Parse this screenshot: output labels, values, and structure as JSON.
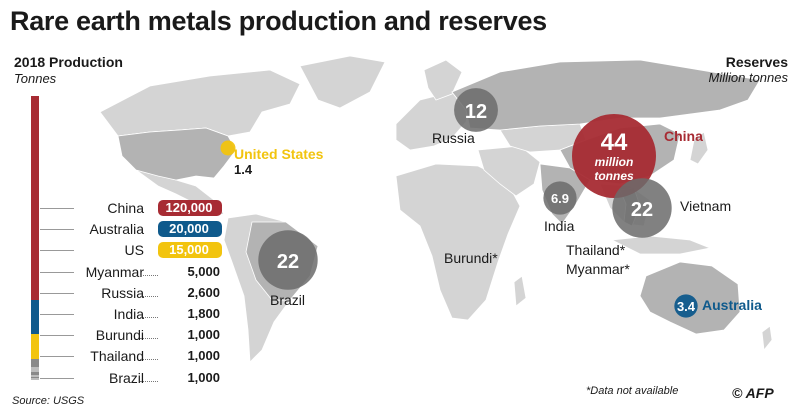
{
  "title": "Rare earth metals production and reserves",
  "production_heading": "2018 Production",
  "production_unit": "Tonnes",
  "reserves_heading": "Reserves",
  "reserves_unit": "Million tonnes",
  "source": "Source: USGS",
  "note": "*Data not available",
  "credit": "© AFP",
  "colors": {
    "china": "#a72b33",
    "australia": "#0f5a8c",
    "us": "#f2c40f",
    "myanmar": "#bdbdbd",
    "other": "#8a8a8a",
    "land": "#d6d6d6",
    "land_dark": "#b7b7b7",
    "bubble": "#6b6b6b"
  },
  "chart_data": [
    {
      "type": "bar",
      "title": "2018 Production",
      "ylabel": "Tonnes",
      "categories": [
        "China",
        "Australia",
        "US",
        "Myanmar",
        "Russia",
        "India",
        "Burundi",
        "Thailand",
        "Brazil"
      ],
      "values": [
        120000,
        20000,
        15000,
        5000,
        2600,
        1800,
        1000,
        1000,
        1000
      ],
      "labels": [
        "120,000",
        "20,000",
        "15,000",
        "5,000",
        "2,600",
        "1,800",
        "1,000",
        "1,000",
        "1,000"
      ]
    },
    {
      "type": "scatter",
      "title": "Reserves",
      "ylabel": "Million tonnes",
      "points": [
        {
          "country": "China",
          "value": 44,
          "label": "44",
          "sublabel": "million tonnes"
        },
        {
          "country": "Brazil",
          "value": 22,
          "label": "22"
        },
        {
          "country": "Vietnam",
          "value": 22,
          "label": "22"
        },
        {
          "country": "Russia",
          "value": 12,
          "label": "12"
        },
        {
          "country": "India",
          "value": 6.9,
          "label": "6.9"
        },
        {
          "country": "Australia",
          "value": 3.4,
          "label": "3.4"
        },
        {
          "country": "United States",
          "value": 1.4,
          "label": "1.4"
        }
      ]
    }
  ],
  "map_labels": {
    "united_states": "United States",
    "united_states_value": "1.4",
    "russia": "Russia",
    "china": "China",
    "india": "India",
    "vietnam": "Vietnam",
    "brazil": "Brazil",
    "burundi": "Burundi*",
    "thailand": "Thailand*",
    "myanmar": "Myanmar*",
    "australia": "Australia",
    "china_sub1": "million",
    "china_sub2": "tonnes"
  }
}
